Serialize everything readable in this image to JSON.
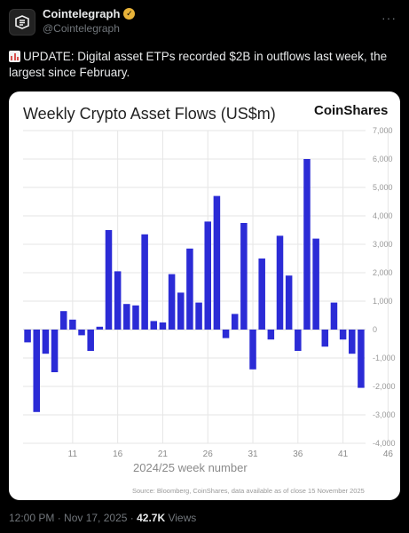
{
  "tweet": {
    "display_name": "Cointelegraph",
    "handle": "@Cointelegraph",
    "more_label": "···",
    "text": "UPDATE: Digital asset ETPs recorded $2B in outflows last week, the largest since February.",
    "time": "12:00 PM · Nov 17, 2025 ·",
    "views_count": "42.7K",
    "views_label": "Views"
  },
  "chart_data": {
    "type": "bar",
    "title": "Weekly Crypto Asset Flows (US$m)",
    "brand": "CoinShares",
    "xlabel": "2024/25 week number",
    "source": "Source: Bloomberg, CoinShares, data available as of close 15 November 2025",
    "ylim": [
      -4000,
      7000
    ],
    "y_ticks": [
      7000,
      6000,
      5000,
      4000,
      3000,
      2000,
      1000,
      0,
      -1000,
      -2000,
      -3000,
      -4000
    ],
    "y_tick_labels": [
      "7,000",
      "6,000",
      "5,000",
      "4,000",
      "3,000",
      "2,000",
      "1,000",
      "0",
      "-1,000",
      "-2,000",
      "-3,000",
      "-4,000"
    ],
    "x_tick_labels": [
      "11",
      "16",
      "21",
      "26",
      "31",
      "36",
      "41",
      "46"
    ],
    "x_tick_bar_index": [
      5,
      10,
      15,
      20,
      25,
      30,
      35,
      40
    ],
    "grid": true,
    "color": "#2b2bd6",
    "values": [
      -450,
      -2900,
      -850,
      -1500,
      650,
      350,
      -200,
      -750,
      100,
      3500,
      2050,
      900,
      850,
      3350,
      300,
      250,
      1950,
      1300,
      2850,
      950,
      3800,
      4700,
      -300,
      550,
      3750,
      -1400,
      2500,
      -350,
      3300,
      1900,
      -750,
      6000,
      3200,
      -600,
      950,
      -350,
      -850,
      -2050
    ]
  }
}
